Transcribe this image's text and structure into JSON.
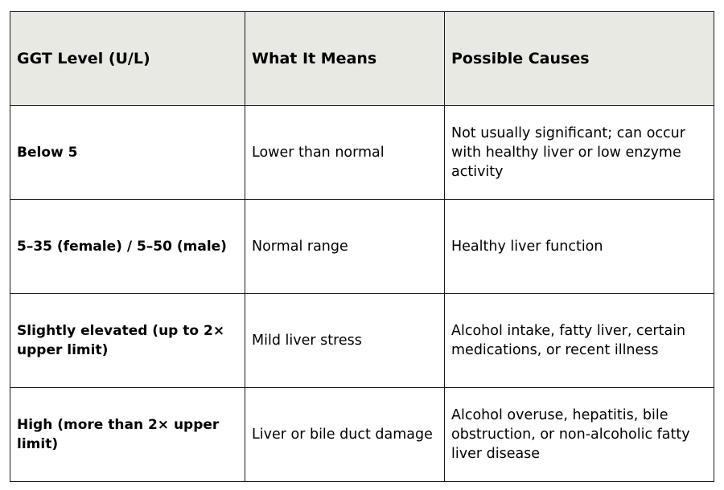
{
  "table": {
    "headers": [
      "GGT Level (U/L)",
      "What It Means",
      "Possible Causes"
    ],
    "rows": [
      [
        "Below 5",
        "Lower than normal",
        "Not usually significant; can occur with healthy liver or low enzyme activity"
      ],
      [
        "5–35 (female) / 5–50 (male)",
        "Normal range",
        "Healthy liver function"
      ],
      [
        "Slightly elevated (up to 2× upper limit)",
        "Mild liver stress",
        "Alcohol intake, fatty liver, certain medications, or recent illness"
      ],
      [
        "High (more than 2× upper limit)",
        "Liver or bile duct damage",
        "Alcohol overuse, hepatitis, bile obstruction, or non-alcoholic fatty liver disease"
      ]
    ]
  },
  "colors": {
    "header_background": "#e8e9e3",
    "border": "#1a1a1a"
  }
}
